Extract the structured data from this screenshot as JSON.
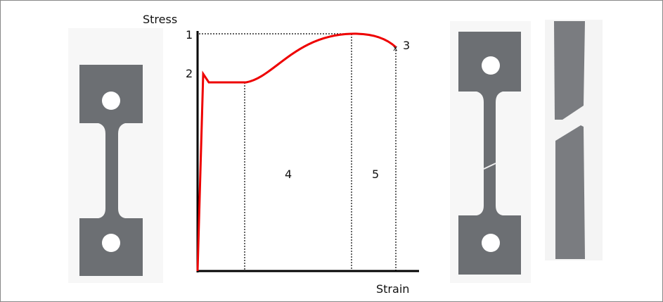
{
  "axes": {
    "y_label": "Stress",
    "x_label": "Strain"
  },
  "annotations": [
    "1",
    "2",
    "3",
    "4",
    "5"
  ],
  "fracture_marker": "x"
}
